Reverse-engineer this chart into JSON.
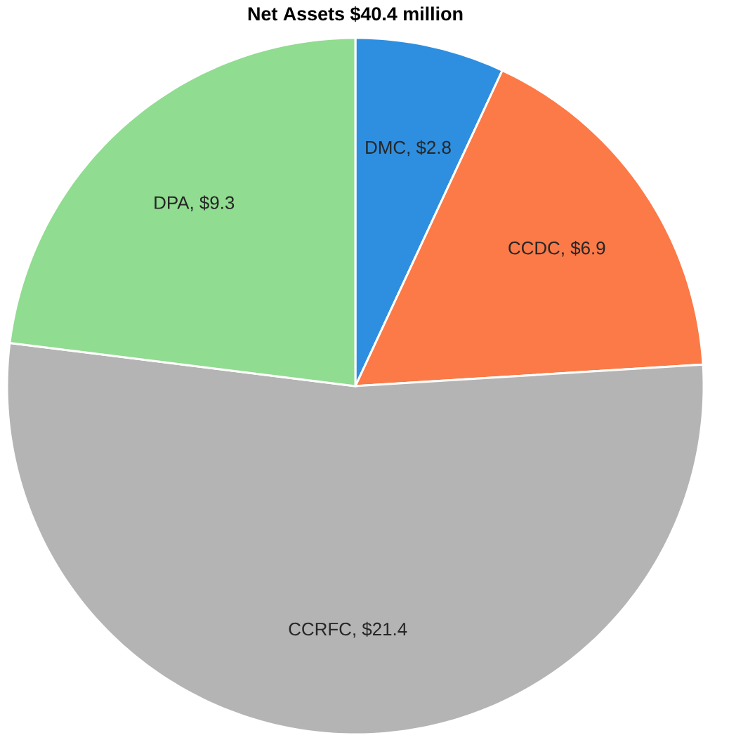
{
  "chart_data": {
    "type": "pie",
    "title": "Net Assets $40.4 million",
    "categories": [
      "DMC",
      "CCDC",
      "CCRFC",
      "DPA"
    ],
    "values": [
      2.8,
      6.9,
      21.4,
      9.3
    ],
    "value_labels": [
      ", $2.8",
      ", $6.9",
      ", $21.4",
      ", $9.3"
    ],
    "colors": [
      "#2e8fe0",
      "#fb7a48",
      "#b4b4b4",
      "#90dc90"
    ]
  }
}
